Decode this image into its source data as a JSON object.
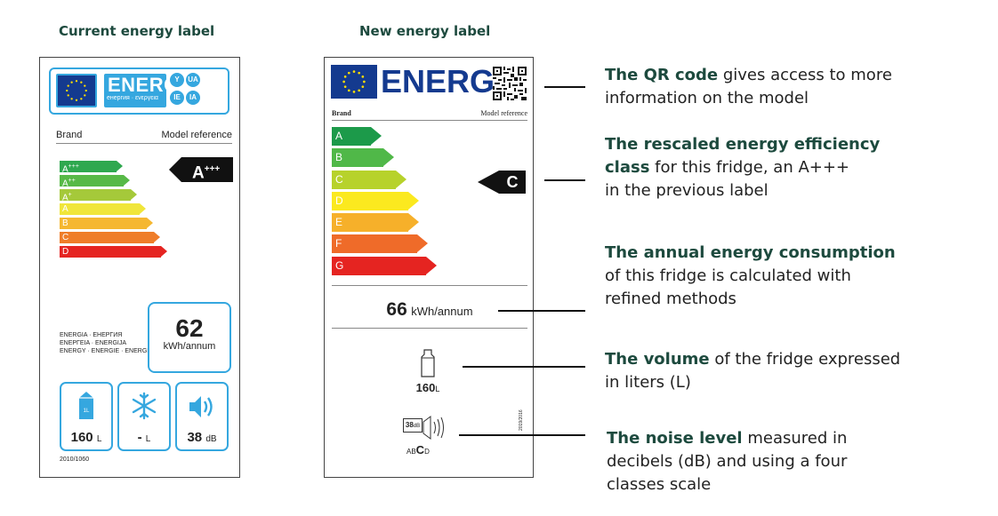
{
  "headings": {
    "current": "Current energy label",
    "new": "New energy label"
  },
  "current_label": {
    "header": {
      "energ": "ENERG",
      "energ_sub": "енергия · ενεργεια",
      "circles": [
        "Y",
        "UA",
        "IE",
        "IA"
      ]
    },
    "brand": "Brand",
    "model_reference": "Model reference",
    "classes": [
      {
        "label": "A",
        "sup": "+++",
        "color": "#2fa84f"
      },
      {
        "label": "A",
        "sup": "++",
        "color": "#57b947"
      },
      {
        "label": "A",
        "sup": "+",
        "color": "#a5c93a"
      },
      {
        "label": "A",
        "sup": "",
        "color": "#f0e63a"
      },
      {
        "label": "B",
        "sup": "",
        "color": "#f5b731"
      },
      {
        "label": "C",
        "sup": "",
        "color": "#ef7d29"
      },
      {
        "label": "D",
        "sup": "",
        "color": "#e52421"
      }
    ],
    "rating": {
      "label": "A",
      "sup": "+++"
    },
    "multilang": [
      "ENERGIA · ЕНЕРГИЯ",
      "ΕΝΕΡΓΕΙΑ · ENERGIJA",
      "ENERGY · ENERGIE · ENERGI"
    ],
    "kwh_value": "62",
    "kwh_unit": "kWh/annum",
    "volume_value": "160",
    "volume_unit": "L",
    "freezer_value": "-",
    "freezer_unit": "L",
    "noise_value": "38",
    "noise_unit": "dB",
    "regulation": "2010/1060",
    "accent_color": "#35a7df"
  },
  "new_label": {
    "energ": "ENERG",
    "brand": "Brand",
    "model_reference": "Model reference",
    "classes": [
      {
        "label": "A",
        "color": "#1c9a4a"
      },
      {
        "label": "B",
        "color": "#50b848"
      },
      {
        "label": "C",
        "color": "#b7d22b"
      },
      {
        "label": "D",
        "color": "#fbe91f"
      },
      {
        "label": "E",
        "color": "#f6b02a"
      },
      {
        "label": "F",
        "color": "#ef6b29"
      },
      {
        "label": "G",
        "color": "#e52421"
      }
    ],
    "rating": "C",
    "kwh_value": "66",
    "kwh_unit": "kWh/annum",
    "volume_value": "160",
    "volume_unit": "L",
    "noise_value": "38",
    "noise_unit": "dB",
    "noise_classes": {
      "pre": "AB",
      "active": "C",
      "post": "D"
    },
    "regulation": "2019/2016",
    "brand_color": "#143a8f"
  },
  "callouts": {
    "qr": {
      "bold": "The QR code",
      "rest_1": " gives access to more",
      "line_2": "information on the model"
    },
    "class": {
      "bold_1": "The rescaled energy efficiency",
      "bold_2": "class",
      "rest_2": " for this fridge, an A+++",
      "line_3": "in the previous label"
    },
    "energy": {
      "bold": "The annual energy consumption",
      "line_2": "of this fridge is calculated with",
      "line_3": "refined methods"
    },
    "volume": {
      "bold": "The volume",
      "rest_1": " of the fridge expressed",
      "line_2": "in liters (L)"
    },
    "noise": {
      "bold": "The noise level",
      "rest_1": " measured in",
      "line_2": "decibels (dB) and using a four",
      "line_3": "classes scale"
    }
  }
}
